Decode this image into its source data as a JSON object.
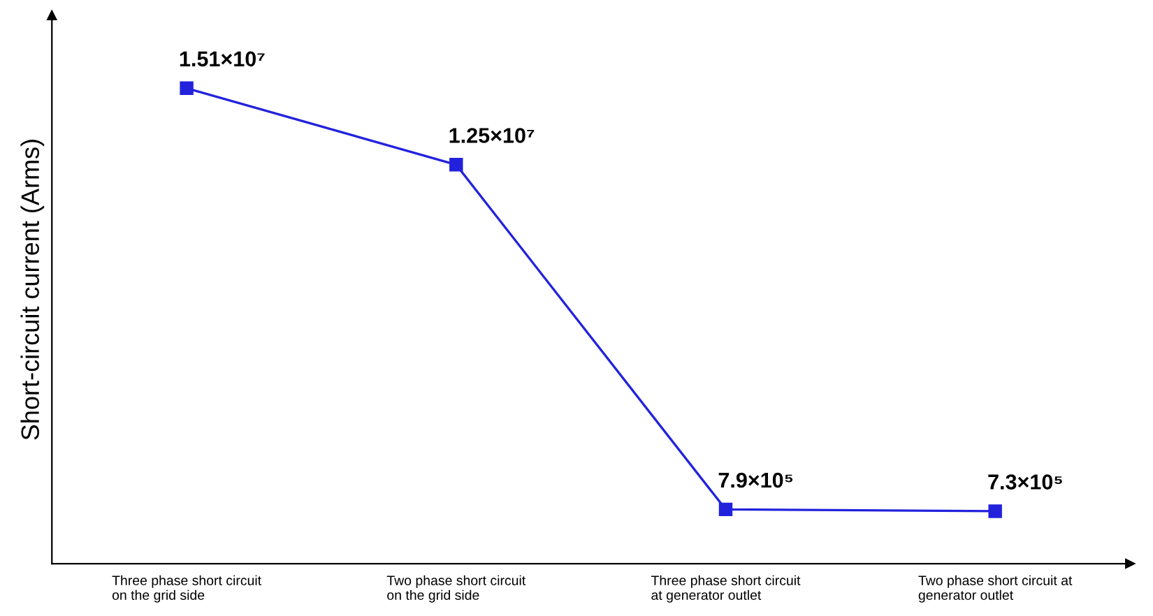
{
  "chart_data": {
    "type": "line",
    "ylabel": "Short-circuit current (Arms)",
    "categories": [
      "Three phase short circuit\non the grid side",
      "Two phase short circuit\non the grid side",
      "Three phase short circuit\nat generator outlet",
      "Two phase short circuit at\ngenerator outlet"
    ],
    "series": [
      {
        "color": "#2222dd",
        "values": [
          15100000,
          12500000,
          790000,
          730000
        ],
        "value_labels": [
          "1.51×10⁷",
          "1.25×10⁷",
          "7.9×10⁵",
          "7.3×10⁵"
        ]
      }
    ],
    "marker": "square",
    "line_style": "solid",
    "grid": false,
    "legend": false,
    "tick_labels": "x"
  }
}
